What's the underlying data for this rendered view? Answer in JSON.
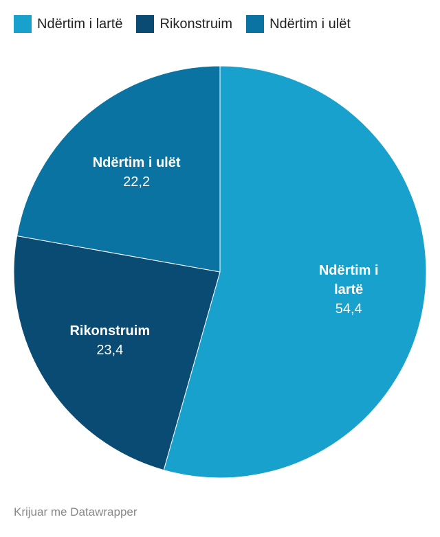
{
  "chart_data": {
    "type": "pie",
    "categories": [
      "Ndërtim i lartë",
      "Rikonstruim",
      "Ndërtim i ulët"
    ],
    "values": [
      54.4,
      23.4,
      22.2
    ],
    "value_labels": [
      "54,4",
      "23,4",
      "22,2"
    ],
    "colors": [
      "#18a1cd",
      "#0a4b74",
      "#0b73a2"
    ],
    "legend": "top",
    "footer": "Krijuar me Datawrapper"
  }
}
